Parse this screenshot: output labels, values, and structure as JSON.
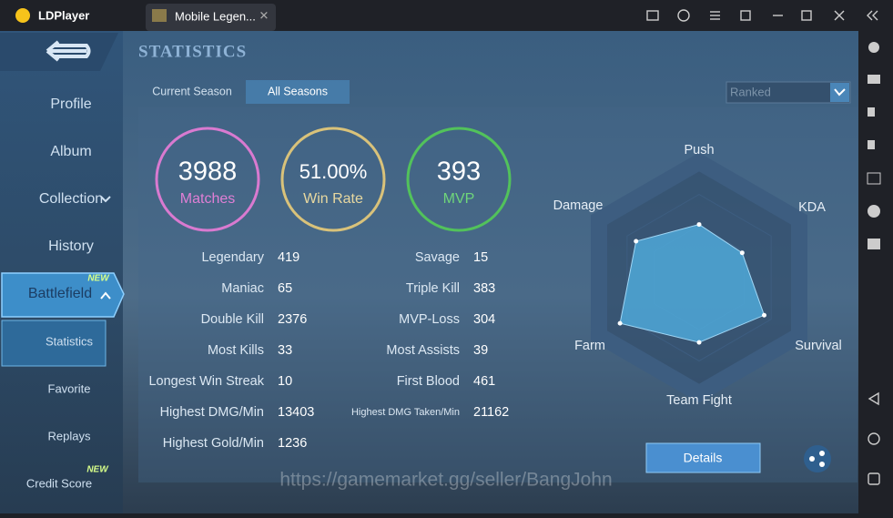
{
  "titlebar": {
    "app": "LDPlayer",
    "tab": "Mobile Legen..."
  },
  "nav": {
    "items": [
      "Profile",
      "Album",
      "Collection",
      "History",
      "Battlefield",
      "Statistics",
      "Favorite",
      "Replays",
      "Credit Score"
    ],
    "badges": [
      "NEW",
      "NEW"
    ]
  },
  "header": {
    "title": "STATISTICS",
    "tabs": [
      "Current Season",
      "All Seasons"
    ],
    "dropdown": "Ranked"
  },
  "summary": [
    {
      "value": 3988,
      "label": "Matches"
    },
    {
      "value": "51.00%",
      "label": "Win Rate"
    },
    {
      "value": 393,
      "label": "MVP"
    }
  ],
  "stats_left": [
    [
      "Legendary",
      419
    ],
    [
      "Maniac",
      65
    ],
    [
      "Double Kill",
      2376
    ],
    [
      "Most Kills",
      33
    ],
    [
      "Longest Win Streak",
      10
    ],
    [
      "Highest DMG/Min",
      13403
    ],
    [
      "Highest Gold/Min",
      1236
    ]
  ],
  "stats_right": [
    [
      "Savage",
      15
    ],
    [
      "Triple Kill",
      383
    ],
    [
      "MVP-Loss",
      304
    ],
    [
      "Most Assists",
      39
    ],
    [
      "First Blood",
      461
    ],
    [
      "Highest DMG Taken/Min",
      21162
    ]
  ],
  "radar": {
    "axes": [
      "Push",
      "KDA",
      "Survival",
      "Team Fight",
      "Farm",
      "Damage"
    ],
    "values": [
      46,
      43,
      65,
      56,
      79,
      63
    ],
    "rlim": [
      0,
      100
    ],
    "color": "#4fa8d8"
  },
  "details": "Details",
  "watermark": "https://gamemarket.gg/seller/BangJohn"
}
